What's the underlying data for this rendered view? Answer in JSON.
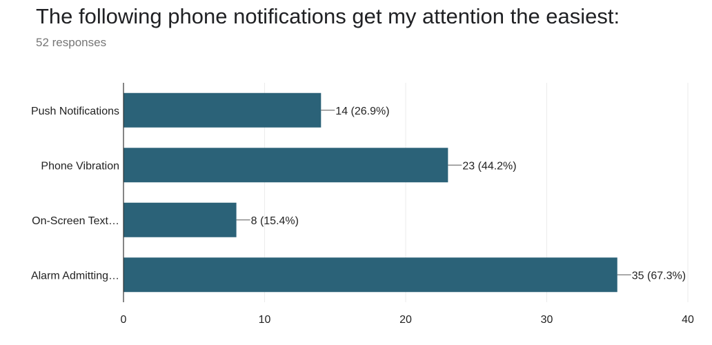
{
  "header": {
    "title": "The following phone notifications get my attention the easiest:",
    "responses": "52 responses"
  },
  "colors": {
    "bar": "#2b6278",
    "gridline": "#ebebeb",
    "axis": "#333333",
    "connector": "#555555"
  },
  "chart_data": {
    "type": "bar",
    "orientation": "horizontal",
    "categories": [
      "Push Notifications",
      "Phone Vibration",
      "On-Screen Text…",
      "Alarm Admitting…"
    ],
    "values": [
      14,
      23,
      8,
      35
    ],
    "data_labels": [
      "14 (26.9%)",
      "23 (44.2%)",
      "8 (15.4%)",
      "35 (67.3%)"
    ],
    "xlim": [
      0,
      40
    ],
    "xticks": [
      0,
      10,
      20,
      30,
      40
    ],
    "grid": true,
    "legend": "none"
  }
}
